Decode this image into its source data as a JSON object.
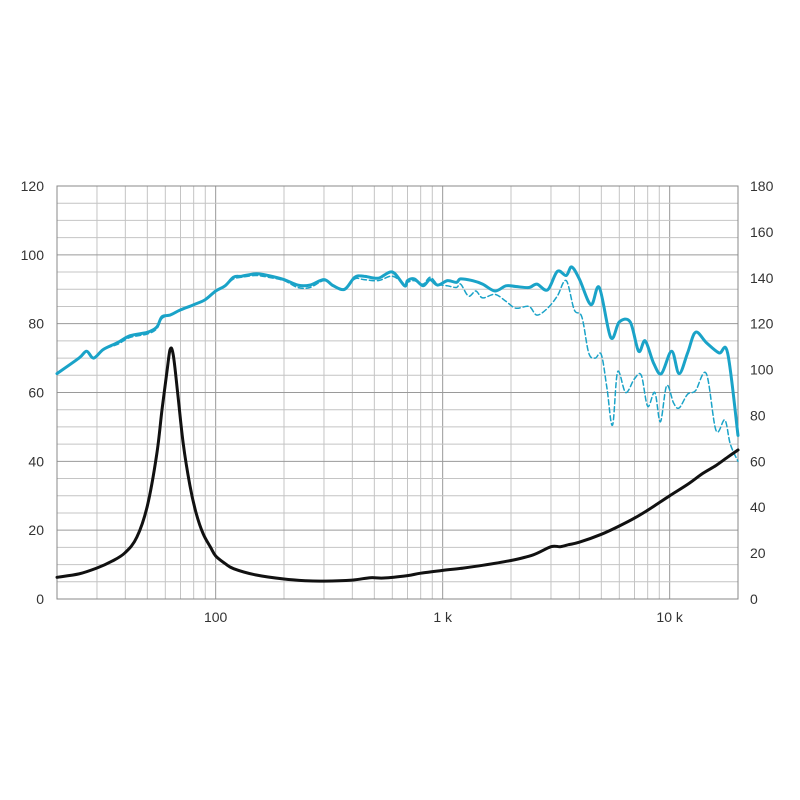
{
  "chart_data": {
    "type": "line",
    "title": "",
    "xlabel": "",
    "ylabel_left": "",
    "ylabel_right": "",
    "x_scale": "log",
    "xlim": [
      20,
      20000
    ],
    "ylim_left": [
      0,
      120
    ],
    "ylim_right": [
      0,
      180
    ],
    "grid": true,
    "legend": "none",
    "x_ticks": [
      {
        "value": 100,
        "label": "100"
      },
      {
        "value": 1000,
        "label": "1 k"
      },
      {
        "value": 10000,
        "label": "10 k"
      }
    ],
    "y_ticks_left": [
      {
        "value": 0,
        "label": "0"
      },
      {
        "value": 20,
        "label": "20"
      },
      {
        "value": 40,
        "label": "40"
      },
      {
        "value": 60,
        "label": "60"
      },
      {
        "value": 80,
        "label": "80"
      },
      {
        "value": 100,
        "label": "100"
      },
      {
        "value": 120,
        "label": "120"
      }
    ],
    "y_ticks_right": [
      {
        "value": 0,
        "label": "0"
      },
      {
        "value": 20,
        "label": "20"
      },
      {
        "value": 40,
        "label": "40"
      },
      {
        "value": 60,
        "label": "60"
      },
      {
        "value": 80,
        "label": "80"
      },
      {
        "value": 100,
        "label": "100"
      },
      {
        "value": 120,
        "label": "120"
      },
      {
        "value": 140,
        "label": "140"
      },
      {
        "value": 160,
        "label": "160"
      },
      {
        "value": 180,
        "label": "180"
      }
    ],
    "series": [
      {
        "style": "solid",
        "color": "#1aa3c8",
        "axis": "left",
        "points": [
          [
            20,
            65.5
          ],
          [
            25,
            70
          ],
          [
            27,
            72
          ],
          [
            29,
            70
          ],
          [
            32,
            72.5
          ],
          [
            37,
            74.5
          ],
          [
            42,
            76.5
          ],
          [
            50,
            77.5
          ],
          [
            55,
            79
          ],
          [
            58,
            82
          ],
          [
            63,
            82.5
          ],
          [
            70,
            84
          ],
          [
            80,
            85.5
          ],
          [
            90,
            87
          ],
          [
            100,
            89.5
          ],
          [
            110,
            91
          ],
          [
            120,
            93.5
          ],
          [
            130,
            93.8
          ],
          [
            150,
            94.5
          ],
          [
            170,
            94
          ],
          [
            200,
            92.8
          ],
          [
            230,
            91.2
          ],
          [
            260,
            91.2
          ],
          [
            300,
            92.8
          ],
          [
            330,
            91
          ],
          [
            370,
            90
          ],
          [
            410,
            93.5
          ],
          [
            450,
            93.8
          ],
          [
            520,
            93.2
          ],
          [
            600,
            95
          ],
          [
            680,
            91
          ],
          [
            700,
            92.5
          ],
          [
            750,
            93
          ],
          [
            820,
            91
          ],
          [
            880,
            92.8
          ],
          [
            950,
            91.2
          ],
          [
            1050,
            92.5
          ],
          [
            1150,
            92
          ],
          [
            1200,
            93
          ],
          [
            1350,
            92.5
          ],
          [
            1500,
            91.5
          ],
          [
            1700,
            89.5
          ],
          [
            1900,
            91
          ],
          [
            2100,
            90.8
          ],
          [
            2400,
            90.5
          ],
          [
            2600,
            91.5
          ],
          [
            2900,
            89.8
          ],
          [
            3200,
            95.2
          ],
          [
            3500,
            94
          ],
          [
            3700,
            96.5
          ],
          [
            4000,
            93
          ],
          [
            4500,
            85.5
          ],
          [
            4900,
            90.5
          ],
          [
            5500,
            76
          ],
          [
            6000,
            80.5
          ],
          [
            6700,
            80.5
          ],
          [
            7300,
            72
          ],
          [
            7800,
            75
          ],
          [
            8500,
            68.5
          ],
          [
            9200,
            65.5
          ],
          [
            10200,
            72
          ],
          [
            11000,
            65.5
          ],
          [
            12000,
            71.5
          ],
          [
            13000,
            77.5
          ],
          [
            14500,
            74.5
          ],
          [
            16500,
            71.5
          ],
          [
            18000,
            71.5
          ],
          [
            20000,
            47.5
          ]
        ]
      },
      {
        "style": "dashed",
        "color": "#1aa3c8",
        "axis": "left",
        "points": [
          [
            20,
            65.5
          ],
          [
            25,
            70
          ],
          [
            27,
            72
          ],
          [
            29,
            70
          ],
          [
            32,
            72.5
          ],
          [
            37,
            74
          ],
          [
            42,
            76
          ],
          [
            50,
            77
          ],
          [
            55,
            78.5
          ],
          [
            58,
            81.5
          ],
          [
            63,
            82.5
          ],
          [
            70,
            84
          ],
          [
            80,
            85.5
          ],
          [
            90,
            87
          ],
          [
            100,
            89.5
          ],
          [
            110,
            91
          ],
          [
            120,
            93
          ],
          [
            130,
            93.5
          ],
          [
            150,
            94
          ],
          [
            170,
            93.5
          ],
          [
            200,
            92.5
          ],
          [
            230,
            90.5
          ],
          [
            260,
            90.5
          ],
          [
            300,
            92.5
          ],
          [
            330,
            91
          ],
          [
            370,
            90
          ],
          [
            410,
            93
          ],
          [
            450,
            92.8
          ],
          [
            520,
            92.5
          ],
          [
            600,
            93.8
          ],
          [
            680,
            91.5
          ],
          [
            700,
            92
          ],
          [
            750,
            92.5
          ],
          [
            820,
            91.5
          ],
          [
            880,
            93.5
          ],
          [
            950,
            91.5
          ],
          [
            1050,
            91
          ],
          [
            1150,
            90.5
          ],
          [
            1200,
            91.5
          ],
          [
            1300,
            88
          ],
          [
            1400,
            89.5
          ],
          [
            1500,
            87.5
          ],
          [
            1700,
            88.5
          ],
          [
            1900,
            86.5
          ],
          [
            2100,
            84.5
          ],
          [
            2400,
            85
          ],
          [
            2600,
            82.5
          ],
          [
            2900,
            84.5
          ],
          [
            3200,
            88
          ],
          [
            3500,
            92.5
          ],
          [
            3800,
            84
          ],
          [
            4100,
            82
          ],
          [
            4400,
            71.5
          ],
          [
            4700,
            70
          ],
          [
            5000,
            71
          ],
          [
            5300,
            61
          ],
          [
            5600,
            50.5
          ],
          [
            5900,
            66
          ],
          [
            6400,
            60
          ],
          [
            7000,
            64
          ],
          [
            7500,
            65
          ],
          [
            8000,
            56
          ],
          [
            8600,
            60
          ],
          [
            9100,
            51.5
          ],
          [
            9700,
            62
          ],
          [
            10400,
            57
          ],
          [
            11000,
            55.5
          ],
          [
            12000,
            59.5
          ],
          [
            13000,
            60.5
          ],
          [
            14500,
            65.5
          ],
          [
            16000,
            49
          ],
          [
            17500,
            52
          ],
          [
            18500,
            45
          ],
          [
            20000,
            40
          ]
        ]
      },
      {
        "style": "solid",
        "color": "#111111",
        "axis": "left",
        "points": [
          [
            20,
            6.3
          ],
          [
            25,
            7.3
          ],
          [
            30,
            9
          ],
          [
            35,
            11
          ],
          [
            40,
            13.5
          ],
          [
            45,
            18
          ],
          [
            50,
            27
          ],
          [
            55,
            42
          ],
          [
            58,
            55
          ],
          [
            61,
            66
          ],
          [
            63,
            72.5
          ],
          [
            65,
            71
          ],
          [
            68,
            60
          ],
          [
            72,
            45
          ],
          [
            77,
            33
          ],
          [
            82,
            25
          ],
          [
            88,
            19
          ],
          [
            95,
            15
          ],
          [
            100,
            12.5
          ],
          [
            110,
            10.3
          ],
          [
            120,
            8.8
          ],
          [
            150,
            7
          ],
          [
            200,
            5.8
          ],
          [
            250,
            5.3
          ],
          [
            300,
            5.2
          ],
          [
            400,
            5.5
          ],
          [
            480,
            6.2
          ],
          [
            550,
            6.1
          ],
          [
            700,
            6.8
          ],
          [
            800,
            7.5
          ],
          [
            1000,
            8.3
          ],
          [
            1200,
            8.9
          ],
          [
            1500,
            9.8
          ],
          [
            2000,
            11.2
          ],
          [
            2500,
            12.8
          ],
          [
            3000,
            15.2
          ],
          [
            3300,
            15.2
          ],
          [
            3600,
            15.8
          ],
          [
            4000,
            16.5
          ],
          [
            5000,
            18.8
          ],
          [
            6000,
            21.2
          ],
          [
            7000,
            23.5
          ],
          [
            8000,
            25.8
          ],
          [
            9000,
            28
          ],
          [
            10000,
            30
          ],
          [
            12000,
            33.3
          ],
          [
            14000,
            36.5
          ],
          [
            16000,
            38.8
          ],
          [
            18000,
            41.2
          ],
          [
            20000,
            43.3
          ]
        ]
      }
    ]
  }
}
